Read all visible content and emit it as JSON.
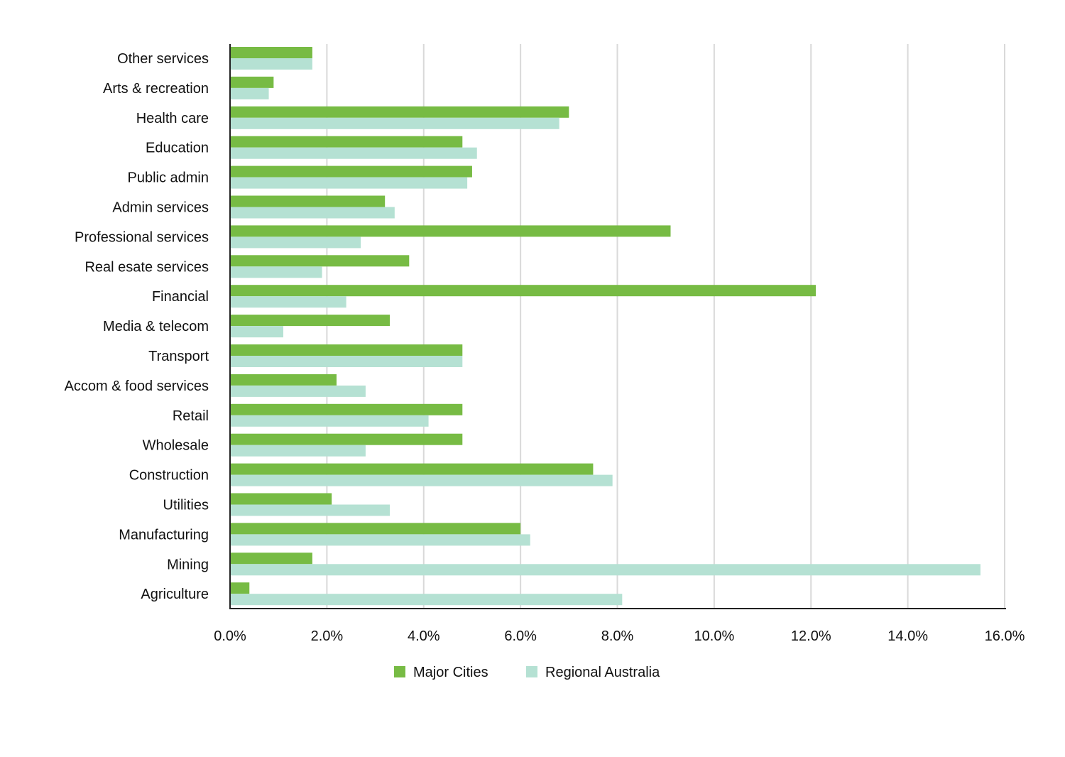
{
  "chart_data": {
    "type": "bar",
    "orientation": "horizontal",
    "title": "",
    "xlabel": "",
    "ylabel": "",
    "xlim": [
      0,
      16
    ],
    "x_ticks": [
      "0.0%",
      "2.0%",
      "4.0%",
      "6.0%",
      "8.0%",
      "10.0%",
      "12.0%",
      "14.0%",
      "16.0%"
    ],
    "grid": "vertical",
    "legend_position": "bottom",
    "categories": [
      "Other services",
      "Arts & recreation",
      "Health care",
      "Education",
      "Public admin",
      "Admin services",
      "Professional services",
      "Real esate services",
      "Financial",
      "Media & telecom",
      "Transport",
      "Accom & food services",
      "Retail",
      "Wholesale",
      "Construction",
      "Utilities",
      "Manufacturing",
      "Mining",
      "Agriculture"
    ],
    "series": [
      {
        "name": "Major Cities",
        "color": "#77bb44",
        "values": [
          1.7,
          0.9,
          7.0,
          4.8,
          5.0,
          3.2,
          9.1,
          3.7,
          12.1,
          3.3,
          4.8,
          2.2,
          4.8,
          4.8,
          7.5,
          2.1,
          6.0,
          1.7,
          0.4
        ]
      },
      {
        "name": "Regional Australia",
        "color": "#b5e1d3",
        "values": [
          1.7,
          0.8,
          6.8,
          5.1,
          4.9,
          3.4,
          2.7,
          1.9,
          2.4,
          1.1,
          4.8,
          2.8,
          4.1,
          2.8,
          7.9,
          3.3,
          6.2,
          15.5,
          8.1
        ]
      }
    ]
  }
}
